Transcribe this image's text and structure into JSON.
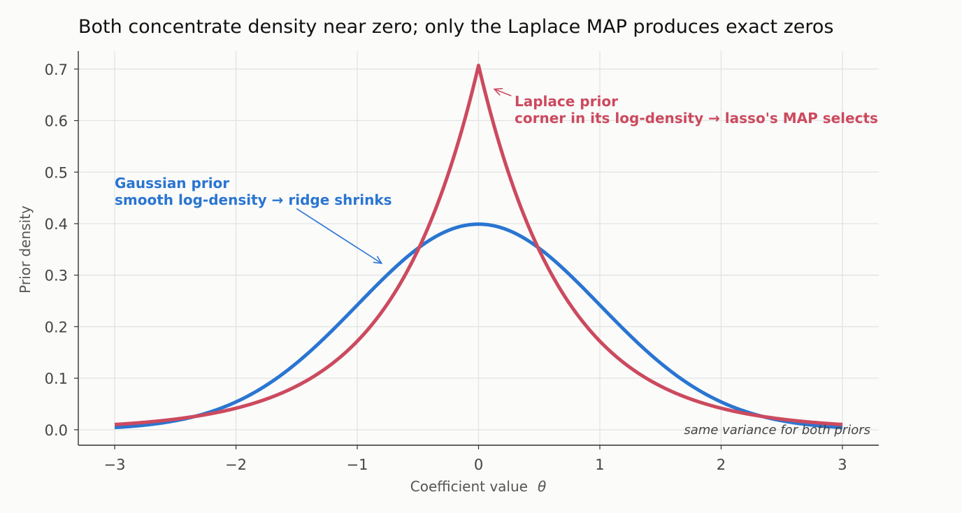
{
  "chart_data": {
    "type": "line",
    "title": "Both concentrate density near zero; only the Laplace MAP produces exact zeros",
    "xlabel": "Coefficient value",
    "xlabel_symbol": "θ",
    "ylabel": "Prior density",
    "xlim": [
      -3.3,
      3.3
    ],
    "ylim": [
      -0.03,
      0.735
    ],
    "xticks": [
      -3,
      -2,
      -1,
      0,
      1,
      2,
      3
    ],
    "xtick_labels": [
      "−3",
      "−2",
      "−1",
      "0",
      "1",
      "2",
      "3"
    ],
    "yticks": [
      0.0,
      0.1,
      0.2,
      0.3,
      0.4,
      0.5,
      0.6,
      0.7
    ],
    "ytick_labels": [
      "0.0",
      "0.1",
      "0.2",
      "0.3",
      "0.4",
      "0.5",
      "0.6",
      "0.7"
    ],
    "grid": true,
    "legend": "none",
    "series": [
      {
        "name": "Gaussian prior",
        "color": "#2a75d1",
        "x": [
          -3.0,
          -2.5,
          -2.0,
          -1.5,
          -1.0,
          -0.5,
          0.0,
          0.5,
          1.0,
          1.5,
          2.0,
          2.5,
          3.0
        ],
        "y": [
          0.004,
          0.018,
          0.054,
          0.13,
          0.242,
          0.352,
          0.399,
          0.352,
          0.242,
          0.13,
          0.054,
          0.018,
          0.004
        ]
      },
      {
        "name": "Laplace prior",
        "color": "#cc4a5e",
        "x": [
          -3.0,
          -2.5,
          -2.0,
          -1.5,
          -1.0,
          -0.5,
          0.0,
          0.5,
          1.0,
          1.5,
          2.0,
          2.5,
          3.0
        ],
        "y": [
          0.01,
          0.021,
          0.042,
          0.084,
          0.171,
          0.347,
          0.707,
          0.347,
          0.171,
          0.084,
          0.042,
          0.021,
          0.01
        ]
      }
    ],
    "annotations": [
      {
        "id": "gaussian",
        "lines": [
          "Gaussian prior",
          "smooth log-density → ridge shrinks"
        ],
        "color": "#2a75d1",
        "arrow_target": {
          "x": -0.8,
          "y": 0.323
        },
        "arrow_tail": {
          "x": -1.5,
          "y": 0.429
        }
      },
      {
        "id": "laplace",
        "lines": [
          "Laplace prior",
          "corner in its log-density → lasso's MAP selects"
        ],
        "color": "#cc4a5e",
        "arrow_target": {
          "x": 0.13,
          "y": 0.661
        },
        "arrow_tail": {
          "x": 0.27,
          "y": 0.648
        }
      }
    ],
    "note": "same variance for both priors"
  }
}
